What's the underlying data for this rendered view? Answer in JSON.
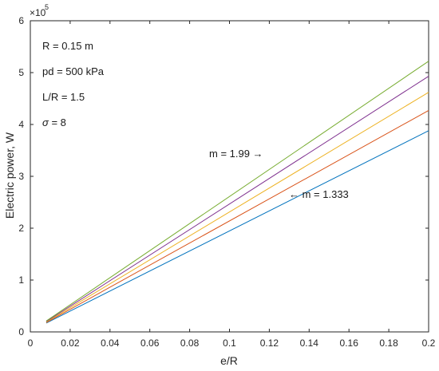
{
  "chart_data": {
    "type": "line",
    "xlabel": "e/R",
    "ylabel": "Electric power, W",
    "xlim": [
      0,
      0.2
    ],
    "ylim": [
      0,
      6
    ],
    "y_scale_exponent_label": "×10",
    "y_scale_exponent": "5",
    "xticks": [
      "0",
      "0.02",
      "0.04",
      "0.06",
      "0.08",
      "0.1",
      "0.12",
      "0.14",
      "0.16",
      "0.18",
      "0.2"
    ],
    "yticks": [
      "0",
      "1",
      "2",
      "3",
      "4",
      "5",
      "6"
    ],
    "grid": false,
    "legend": "none",
    "x": [
      0.008,
      0.2
    ],
    "series": [
      {
        "values": [
          0.17,
          3.88
        ],
        "color": "#0072BD"
      },
      {
        "values": [
          0.18,
          4.27
        ],
        "color": "#D95319"
      },
      {
        "values": [
          0.19,
          4.62
        ],
        "color": "#EDB120"
      },
      {
        "values": [
          0.2,
          4.93
        ],
        "color": "#7E2F8E"
      },
      {
        "values": [
          0.21,
          5.22
        ],
        "color": "#77AC30"
      }
    ],
    "parameters_box": {
      "r": "R = 0.15 m",
      "pd": "pd = 500 kPa",
      "lr": "L/R = 1.5",
      "sigma_symbol": "σ",
      "sigma_value": " = 8"
    },
    "annotations": {
      "upper": "m = 1.99 →",
      "lower": "← m = 1.333"
    }
  }
}
